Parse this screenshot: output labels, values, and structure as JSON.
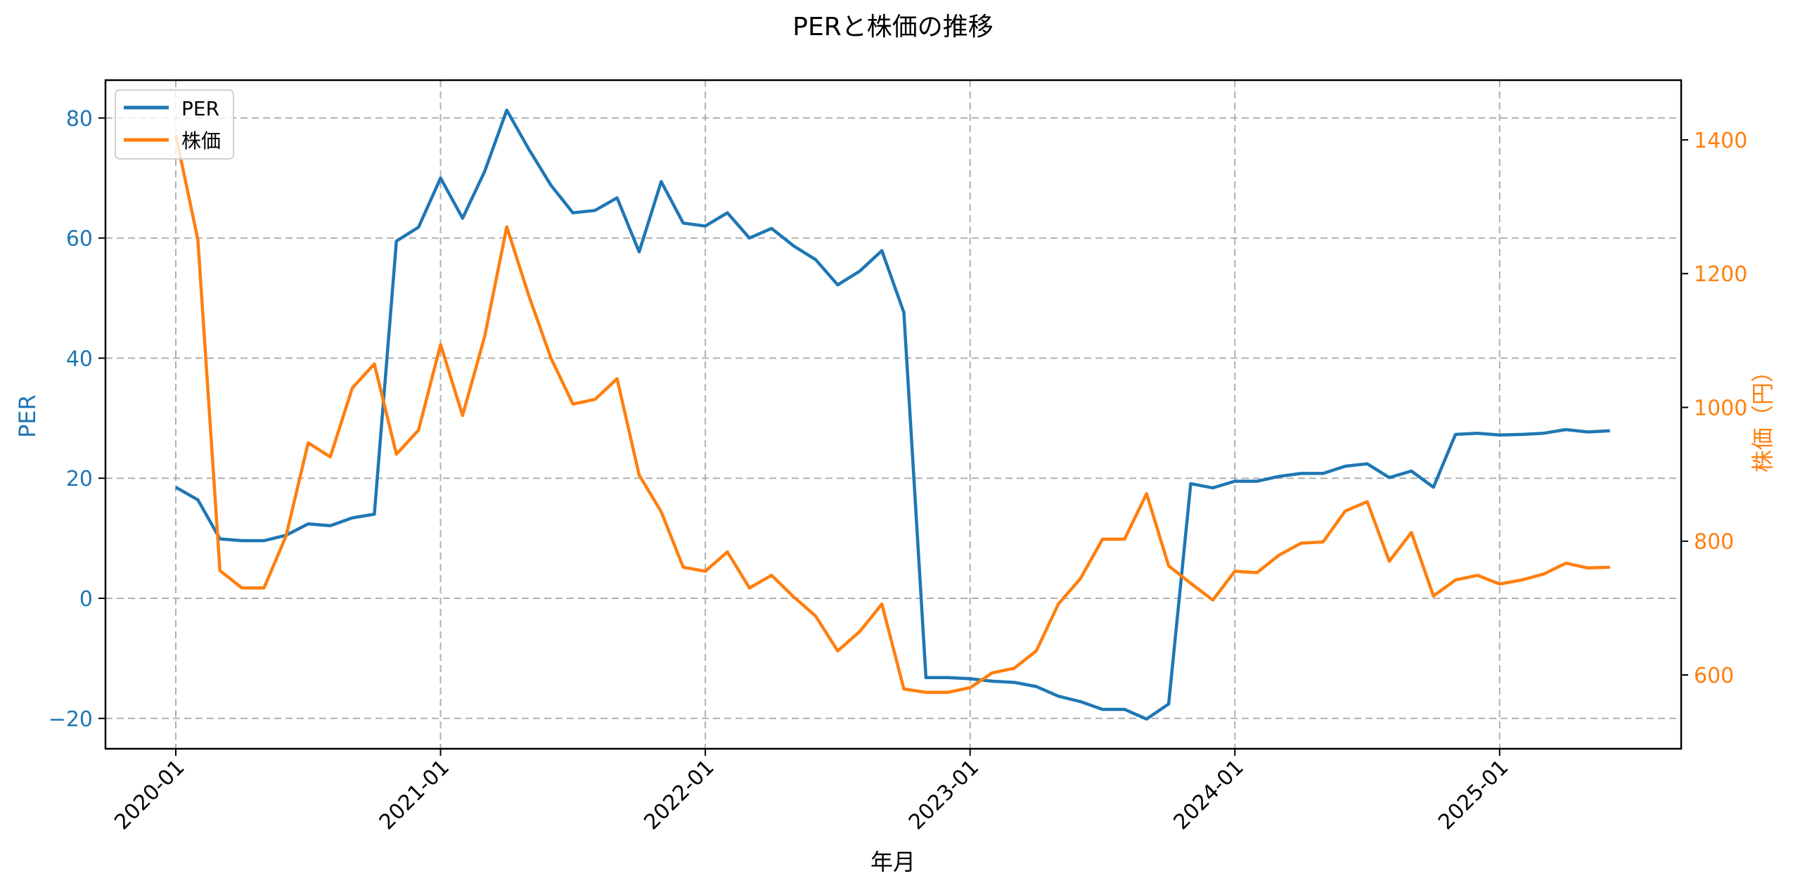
{
  "figure": {
    "title": "PERと株価の推移",
    "xlabel": "年月",
    "ylabel_left": "PER",
    "ylabel_right": "株価（円）"
  },
  "colors": {
    "per": "#1f77b4",
    "price": "#ff7f0e",
    "grid": "#b0b0b0",
    "axis": "#000000"
  },
  "legend": {
    "position": "upper left",
    "items": [
      {
        "label": "PER",
        "color": "#1f77b4"
      },
      {
        "label": "株価",
        "color": "#ff7f0e"
      }
    ]
  },
  "chart_data": {
    "type": "line",
    "title": "PERと株価の推移",
    "xlabel": "年月",
    "ylabel": "PER",
    "ylabel_right": "株価（円）",
    "x_ticks": [
      "2020-01",
      "2021-01",
      "2022-01",
      "2023-01",
      "2024-01",
      "2025-01"
    ],
    "y_ticks_left": [
      -20,
      0,
      20,
      40,
      60,
      80
    ],
    "y_ticks_right": [
      600,
      800,
      1000,
      1200,
      1400
    ],
    "ylim_left": [
      -25.8,
      86.2
    ],
    "ylim_right": [
      489,
      1489
    ],
    "grid": true,
    "legend_position": "upper left",
    "x": [
      "2020-01",
      "2020-02",
      "2020-03",
      "2020-04",
      "2020-05",
      "2020-06",
      "2020-07",
      "2020-08",
      "2020-09",
      "2020-10",
      "2020-11",
      "2020-12",
      "2021-01",
      "2021-02",
      "2021-03",
      "2021-04",
      "2021-05",
      "2021-06",
      "2021-07",
      "2021-08",
      "2021-09",
      "2021-10",
      "2021-11",
      "2021-12",
      "2022-01",
      "2022-02",
      "2022-03",
      "2022-04",
      "2022-05",
      "2022-06",
      "2022-07",
      "2022-08",
      "2022-09",
      "2022-10",
      "2022-11",
      "2022-12",
      "2023-01",
      "2023-02",
      "2023-03",
      "2023-04",
      "2023-05",
      "2023-06",
      "2023-07",
      "2023-08",
      "2023-09",
      "2023-10",
      "2023-11",
      "2023-12",
      "2024-01",
      "2024-02",
      "2024-03",
      "2024-04",
      "2024-05",
      "2024-06",
      "2024-07",
      "2024-08",
      "2024-09",
      "2024-10",
      "2024-11",
      "2024-12",
      "2025-01",
      "2025-02",
      "2025-03",
      "2025-04",
      "2025-05",
      "2025-06"
    ],
    "series": [
      {
        "name": "PER",
        "axis": "left",
        "color": "#1f77b4",
        "values": [
          18.5,
          16.4,
          9.9,
          9.6,
          9.6,
          10.5,
          12.4,
          12.1,
          13.4,
          14.0,
          59.5,
          61.8,
          70.0,
          63.3,
          71.1,
          81.3,
          74.8,
          68.8,
          64.2,
          64.6,
          66.7,
          57.7,
          69.4,
          62.5,
          62.0,
          64.2,
          60.0,
          61.6,
          58.7,
          56.4,
          52.2,
          54.5,
          57.9,
          47.6,
          -13.2,
          -13.2,
          -13.4,
          -13.8,
          -14.0,
          -14.7,
          -16.3,
          -17.2,
          -18.5,
          -18.5,
          -20.1,
          -17.6,
          19.1,
          18.4,
          19.5,
          19.5,
          20.3,
          20.8,
          20.8,
          22.0,
          22.4,
          20.1,
          21.2,
          18.5,
          27.3,
          27.5,
          27.2,
          27.3,
          27.5,
          28.1,
          27.7,
          27.9
        ]
      },
      {
        "name": "株価",
        "axis": "right",
        "color": "#ff7f0e",
        "values": [
          1407,
          1251,
          756,
          730,
          730,
          808,
          947,
          926,
          1029,
          1065,
          930,
          966,
          1094,
          988,
          1106,
          1270,
          1167,
          1074,
          1005,
          1012,
          1043,
          899,
          844,
          761,
          755,
          784,
          730,
          749,
          717,
          688,
          636,
          665,
          706,
          579,
          574,
          574,
          581,
          603,
          610,
          636,
          706,
          744,
          803,
          803,
          871,
          763,
          737,
          712,
          755,
          753,
          779,
          797,
          799,
          845,
          859,
          770,
          813,
          718,
          742,
          749,
          736,
          742,
          751,
          767,
          760,
          761
        ]
      }
    ]
  }
}
